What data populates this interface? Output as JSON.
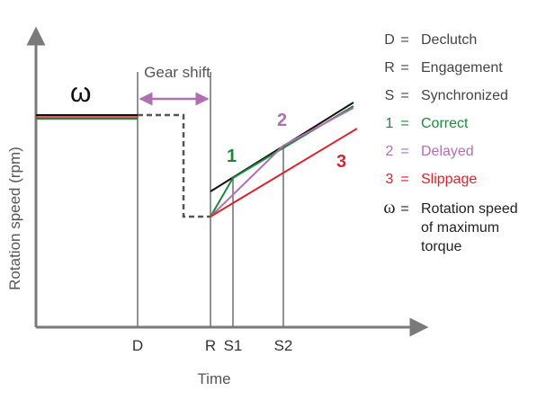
{
  "axes": {
    "y_label": "Rotation speed (rpm)",
    "x_label": "Time",
    "ticks": [
      "D",
      "R",
      "S1",
      "S2"
    ]
  },
  "annotations": {
    "gear_shift": "Gear shift",
    "omega": "ω",
    "curve_1": "1",
    "curve_2": "2",
    "curve_3": "3"
  },
  "legend": [
    {
      "key": "D",
      "eq": "=",
      "text": "Declutch",
      "color": "#444444"
    },
    {
      "key": "R",
      "eq": "=",
      "text": "Engagement",
      "color": "#444444"
    },
    {
      "key": "S",
      "eq": "=",
      "text": "Synchronized",
      "color": "#444444"
    },
    {
      "key": "1",
      "eq": "=",
      "text": "Correct",
      "color": "#1a8a3a"
    },
    {
      "key": "2",
      "eq": "=",
      "text": "Delayed",
      "color": "#b070b0"
    },
    {
      "key": "3",
      "eq": "=",
      "text": "Slippage",
      "color": "#e0202a"
    },
    {
      "key": "ω",
      "eq": "=",
      "text": [
        "Rotation speed",
        "of maximum",
        "torque"
      ],
      "color": "#333333"
    }
  ],
  "colors": {
    "axis": "#7a7a7a",
    "guide": "#6e6e6e",
    "correct": "#1a8a3a",
    "delayed": "#b070b0",
    "slippage": "#e0202a",
    "black": "#111111",
    "gear_shift_arrow": "#b070b0",
    "dashed": "#555555"
  }
}
